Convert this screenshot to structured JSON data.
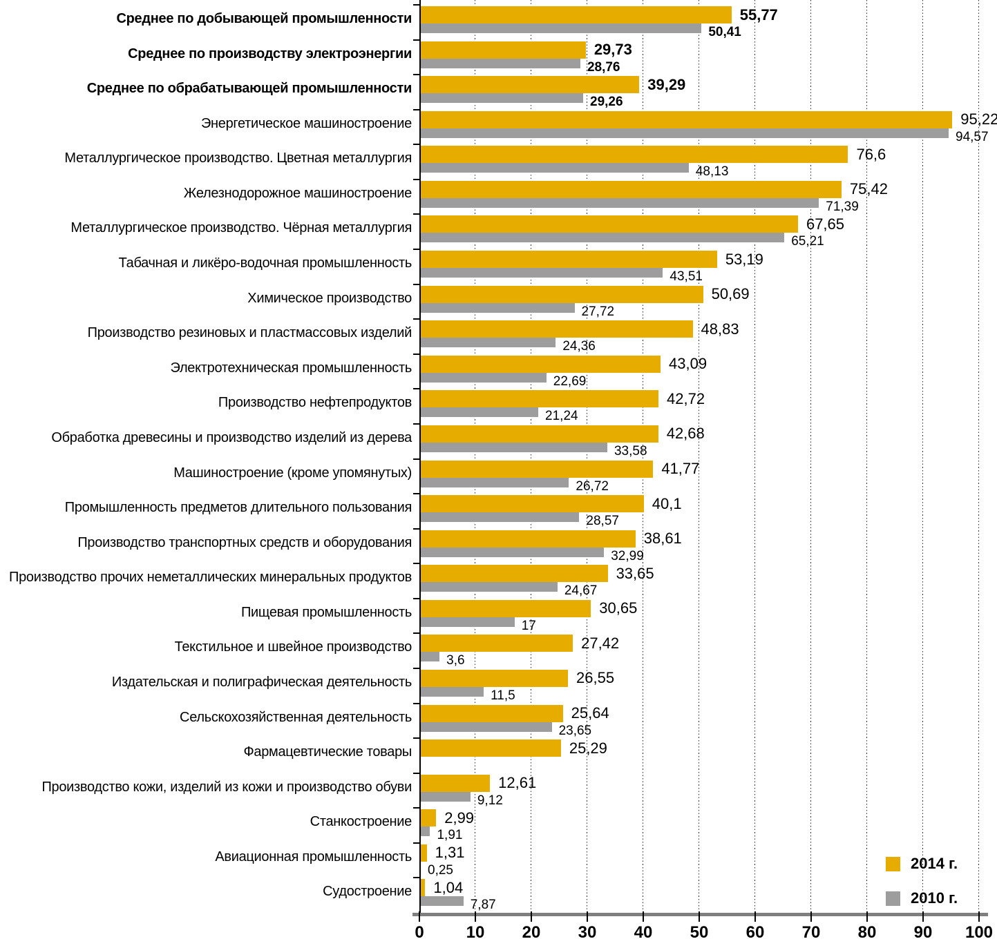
{
  "chart_data": {
    "type": "bar",
    "orientation": "horizontal",
    "title": "",
    "xlabel": "",
    "ylabel": "",
    "xlim": [
      0,
      100
    ],
    "x_ticks": [
      0,
      10,
      20,
      30,
      40,
      50,
      60,
      70,
      80,
      90,
      100
    ],
    "grid": "vertical-dotted",
    "legend_position": "bottom-right",
    "series_meta": [
      {
        "name": "2014 г.",
        "color": "#E6AC00"
      },
      {
        "name": "2010 г.",
        "color": "#9D9D9D"
      }
    ],
    "rows": [
      {
        "category": "Среднее по добывающей промышленности",
        "bold": true,
        "v2014": 55.77,
        "v2010": 50.41,
        "label2014": "55,77",
        "label2010": "50,41"
      },
      {
        "category": "Среднее по производству электроэнергии",
        "bold": true,
        "v2014": 29.73,
        "v2010": 28.76,
        "label2014": "29,73",
        "label2010": "28,76"
      },
      {
        "category": "Среднее по обрабатывающей промышленности",
        "bold": true,
        "v2014": 39.29,
        "v2010": 29.26,
        "label2014": "39,29",
        "label2010": "29,26"
      },
      {
        "category": "Энергетическое машиностроение",
        "bold": false,
        "v2014": 95.22,
        "v2010": 94.57,
        "label2014": "95,22",
        "label2010": "94,57"
      },
      {
        "category": "Металлургическое производство. Цветная металлургия",
        "bold": false,
        "v2014": 76.6,
        "v2010": 48.13,
        "label2014": "76,6",
        "label2010": "48,13"
      },
      {
        "category": "Железнодорожное машиностроение",
        "bold": false,
        "v2014": 75.42,
        "v2010": 71.39,
        "label2014": "75,42",
        "label2010": "71,39"
      },
      {
        "category": "Металлургическое производство. Чёрная металлургия",
        "bold": false,
        "v2014": 67.65,
        "v2010": 65.21,
        "label2014": "67,65",
        "label2010": "65,21"
      },
      {
        "category": "Табачная и ликёро-водочная промышленность",
        "bold": false,
        "v2014": 53.19,
        "v2010": 43.51,
        "label2014": "53,19",
        "label2010": "43,51"
      },
      {
        "category": "Химическое производство",
        "bold": false,
        "v2014": 50.69,
        "v2010": 27.72,
        "label2014": "50,69",
        "label2010": "27,72"
      },
      {
        "category": "Производство резиновых и пластмассовых изделий",
        "bold": false,
        "v2014": 48.83,
        "v2010": 24.36,
        "label2014": "48,83",
        "label2010": "24,36"
      },
      {
        "category": "Электротехническая промышленность",
        "bold": false,
        "v2014": 43.09,
        "v2010": 22.69,
        "label2014": "43,09",
        "label2010": "22,69"
      },
      {
        "category": "Производство нефтепродуктов",
        "bold": false,
        "v2014": 42.72,
        "v2010": 21.24,
        "label2014": "42,72",
        "label2010": "21,24"
      },
      {
        "category": "Обработка древесины и производство изделий из дерева",
        "bold": false,
        "v2014": 42.68,
        "v2010": 33.58,
        "label2014": "42,68",
        "label2010": "33,58"
      },
      {
        "category": "Машиностроение (кроме упомянутых)",
        "bold": false,
        "v2014": 41.77,
        "v2010": 26.72,
        "label2014": "41,77",
        "label2010": "26,72"
      },
      {
        "category": "Промышленность предметов длительного пользования",
        "bold": false,
        "v2014": 40.1,
        "v2010": 28.57,
        "label2014": "40,1",
        "label2010": "28,57"
      },
      {
        "category": "Производство транспортных средств и оборудования",
        "bold": false,
        "v2014": 38.61,
        "v2010": 32.99,
        "label2014": "38,61",
        "label2010": "32,99"
      },
      {
        "category": "Производство прочих неметаллических минеральных продуктов",
        "bold": false,
        "v2014": 33.65,
        "v2010": 24.67,
        "label2014": "33,65",
        "label2010": "24,67"
      },
      {
        "category": "Пищевая промышленность",
        "bold": false,
        "v2014": 30.65,
        "v2010": 17,
        "label2014": "30,65",
        "label2010": "17"
      },
      {
        "category": "Текстильное и швейное производство",
        "bold": false,
        "v2014": 27.42,
        "v2010": 3.6,
        "label2014": "27,42",
        "label2010": "3,6"
      },
      {
        "category": "Издательская и полиграфическая деятельность",
        "bold": false,
        "v2014": 26.55,
        "v2010": 11.5,
        "label2014": "26,55",
        "label2010": "11,5"
      },
      {
        "category": "Сельскохозяйственная деятельность",
        "bold": false,
        "v2014": 25.64,
        "v2010": 23.65,
        "label2014": "25,64",
        "label2010": "23,65"
      },
      {
        "category": "Фармацевтические товары",
        "bold": false,
        "v2014": 25.29,
        "v2010": null,
        "label2014": "25,29",
        "label2010": ""
      },
      {
        "category": "Производство кожи, изделий из кожи и производство обуви",
        "bold": false,
        "v2014": 12.61,
        "v2010": 9.12,
        "label2014": "12,61",
        "label2010": "9,12"
      },
      {
        "category": "Станкостроение",
        "bold": false,
        "v2014": 2.99,
        "v2010": 1.91,
        "label2014": "2,99",
        "label2010": "1,91"
      },
      {
        "category": "Авиационная промышленность",
        "bold": false,
        "v2014": 1.31,
        "v2010": 0.25,
        "label2014": "1,31",
        "label2010": "0,25"
      },
      {
        "category": "Судостроение",
        "bold": false,
        "v2014": 1.04,
        "v2010": 7.87,
        "label2014": "1,04",
        "label2010": "7,87"
      }
    ]
  },
  "legend": {
    "items": [
      {
        "label": "2014 г.",
        "color": "#E6AC00"
      },
      {
        "label": "2010 г.",
        "color": "#9D9D9D"
      }
    ]
  },
  "colors": {
    "bar_2014": "#E6AC00",
    "bar_2010": "#9D9D9D",
    "axis_line": "#7F7F7F",
    "tick": "#000000",
    "grid": "#2B2B2B",
    "text": "#000000"
  }
}
